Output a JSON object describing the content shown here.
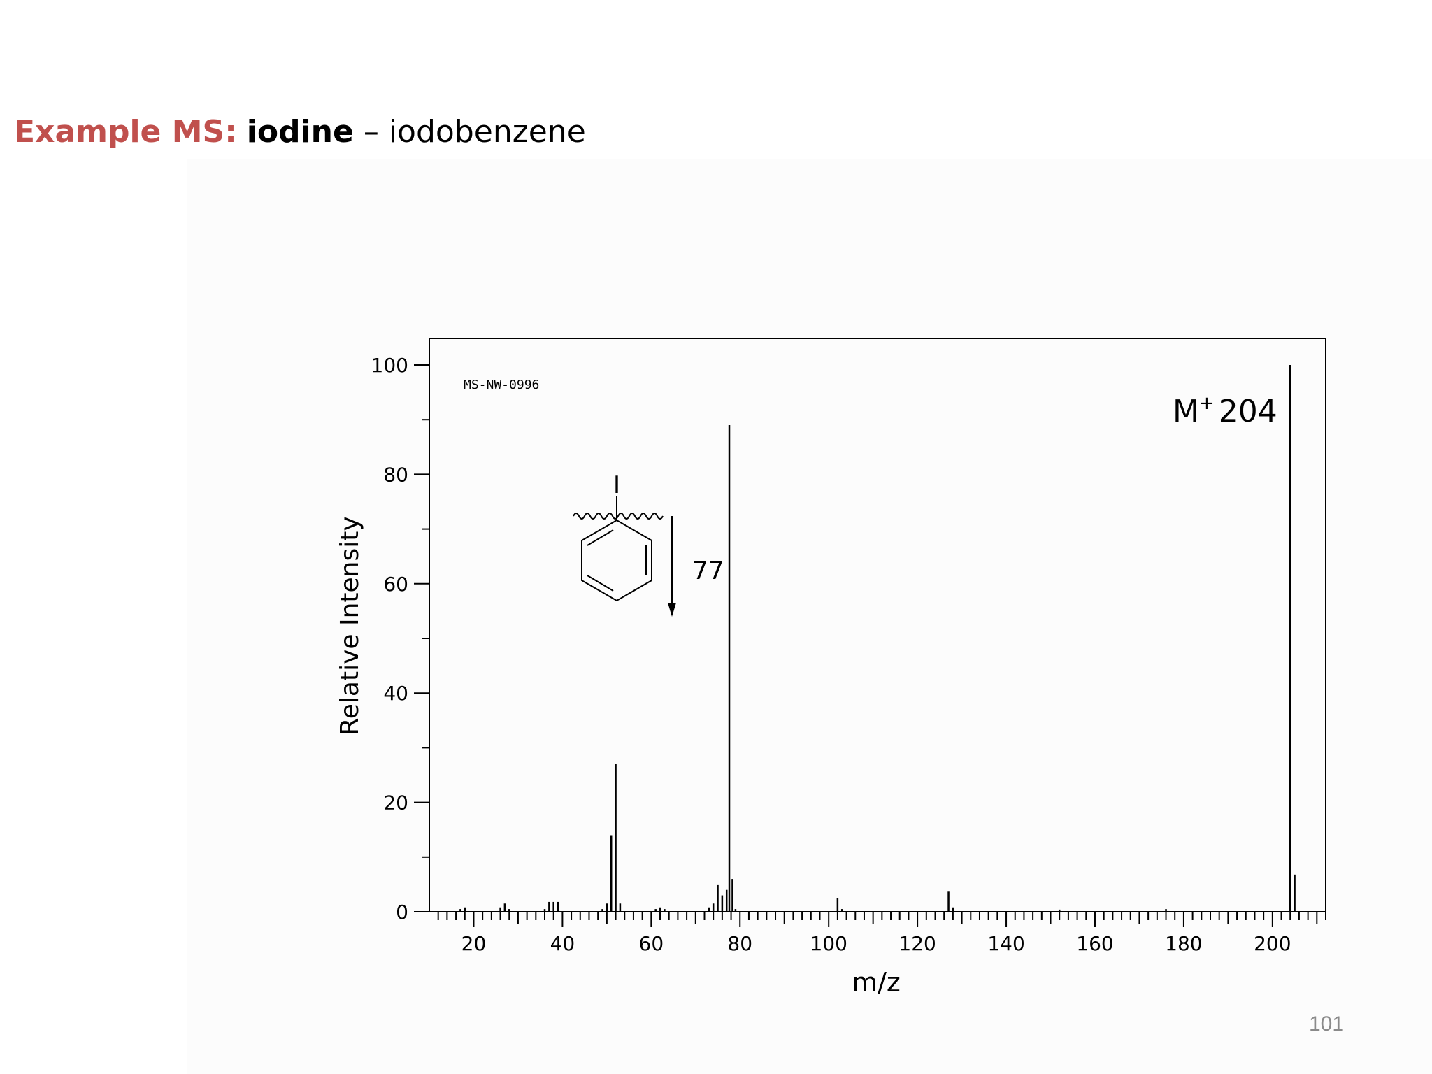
{
  "slide": {
    "title_lead": "Example MS:",
    "title_bold": "iodine",
    "title_rest": " – iodobenzene",
    "page_number": "101"
  },
  "colors": {
    "title_accent": "#c0504d",
    "ink": "#000000",
    "page_number": "#8a8a8a"
  },
  "chart_data": {
    "type": "bar",
    "title": "",
    "xlabel": "m/z",
    "ylabel": "Relative Intensity",
    "xlim": [
      10,
      212
    ],
    "ylim": [
      0,
      100
    ],
    "x_ticks": [
      20,
      40,
      60,
      80,
      100,
      120,
      140,
      160,
      180,
      200
    ],
    "y_ticks": [
      0,
      20,
      40,
      60,
      80,
      100
    ],
    "grid": false,
    "code_label": "MS-NW-0996",
    "molecular_ion_label": {
      "text": "M",
      "superscript": "+",
      "value": "204"
    },
    "fragment_label": "77",
    "structure_atom_label": "I",
    "peaks": [
      {
        "mz": 17,
        "intensity": 0.5
      },
      {
        "mz": 18,
        "intensity": 0.8
      },
      {
        "mz": 26,
        "intensity": 0.8
      },
      {
        "mz": 27,
        "intensity": 1.5
      },
      {
        "mz": 28,
        "intensity": 0.5
      },
      {
        "mz": 36,
        "intensity": 0.5
      },
      {
        "mz": 37,
        "intensity": 1.8
      },
      {
        "mz": 38,
        "intensity": 1.8
      },
      {
        "mz": 39,
        "intensity": 1.8
      },
      {
        "mz": 49,
        "intensity": 0.5
      },
      {
        "mz": 50,
        "intensity": 1.5
      },
      {
        "mz": 51,
        "intensity": 14
      },
      {
        "mz": 52,
        "intensity": 27
      },
      {
        "mz": 53,
        "intensity": 1.5
      },
      {
        "mz": 61,
        "intensity": 0.5
      },
      {
        "mz": 62,
        "intensity": 0.8
      },
      {
        "mz": 63,
        "intensity": 0.5
      },
      {
        "mz": 73,
        "intensity": 0.8
      },
      {
        "mz": 74,
        "intensity": 1.5
      },
      {
        "mz": 75,
        "intensity": 5
      },
      {
        "mz": 76,
        "intensity": 3
      },
      {
        "mz": 77,
        "intensity": 4
      },
      {
        "mz": 77.6,
        "intensity": 89
      },
      {
        "mz": 78.3,
        "intensity": 6
      },
      {
        "mz": 79,
        "intensity": 0.5
      },
      {
        "mz": 102,
        "intensity": 2.5
      },
      {
        "mz": 103,
        "intensity": 0.5
      },
      {
        "mz": 127,
        "intensity": 3.8
      },
      {
        "mz": 128,
        "intensity": 0.8
      },
      {
        "mz": 152,
        "intensity": 0.4
      },
      {
        "mz": 176,
        "intensity": 0.5
      },
      {
        "mz": 204,
        "intensity": 100
      },
      {
        "mz": 205,
        "intensity": 6.8
      }
    ]
  }
}
